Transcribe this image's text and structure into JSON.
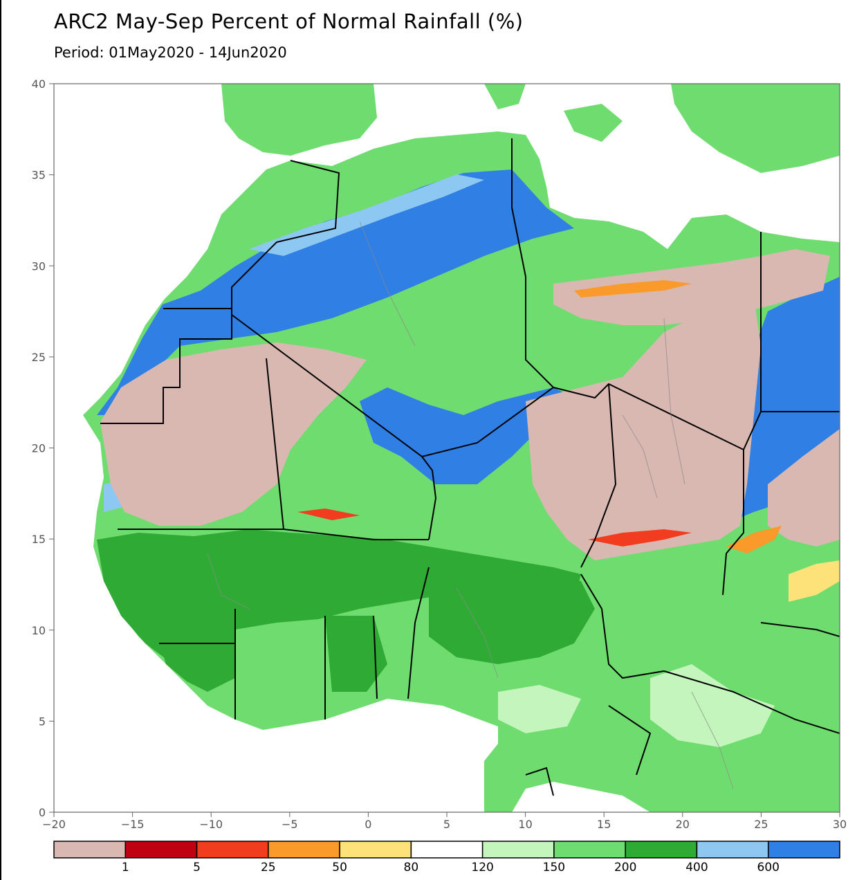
{
  "title": "ARC2 May-Sep Percent of Normal Rainfall (%)",
  "subtitle": "Period: 01May2020 - 14Jun2020",
  "map": {
    "lon_range": [
      -20,
      30
    ],
    "lat_range": [
      0,
      40
    ],
    "x_ticks": [
      {
        "value": -20,
        "label": "−20"
      },
      {
        "value": -15,
        "label": "−15"
      },
      {
        "value": -10,
        "label": "−10"
      },
      {
        "value": -5,
        "label": "−5"
      },
      {
        "value": 0,
        "label": "0"
      },
      {
        "value": 5,
        "label": "5"
      },
      {
        "value": 10,
        "label": "10"
      },
      {
        "value": 15,
        "label": "15"
      },
      {
        "value": 20,
        "label": "20"
      },
      {
        "value": 25,
        "label": "25"
      },
      {
        "value": 30,
        "label": "30"
      }
    ],
    "y_ticks": [
      {
        "value": 0,
        "label": "0"
      },
      {
        "value": 5,
        "label": "5"
      },
      {
        "value": 10,
        "label": "10"
      },
      {
        "value": 15,
        "label": "15"
      },
      {
        "value": 20,
        "label": "20"
      },
      {
        "value": 25,
        "label": "25"
      },
      {
        "value": 30,
        "label": "30"
      },
      {
        "value": 35,
        "label": "35"
      },
      {
        "value": 40,
        "label": "40"
      }
    ]
  },
  "legend": {
    "colors": [
      "#d8b8b0",
      "#c00010",
      "#f23c20",
      "#fa9a2a",
      "#fde27a",
      "#ffffff",
      "#c4f5bc",
      "#6fdc6f",
      "#2faa34",
      "#8cc8f2",
      "#2f7fe5"
    ],
    "labels": [
      "1",
      "5",
      "25",
      "50",
      "80",
      "120",
      "150",
      "200",
      "400",
      "600"
    ]
  }
}
